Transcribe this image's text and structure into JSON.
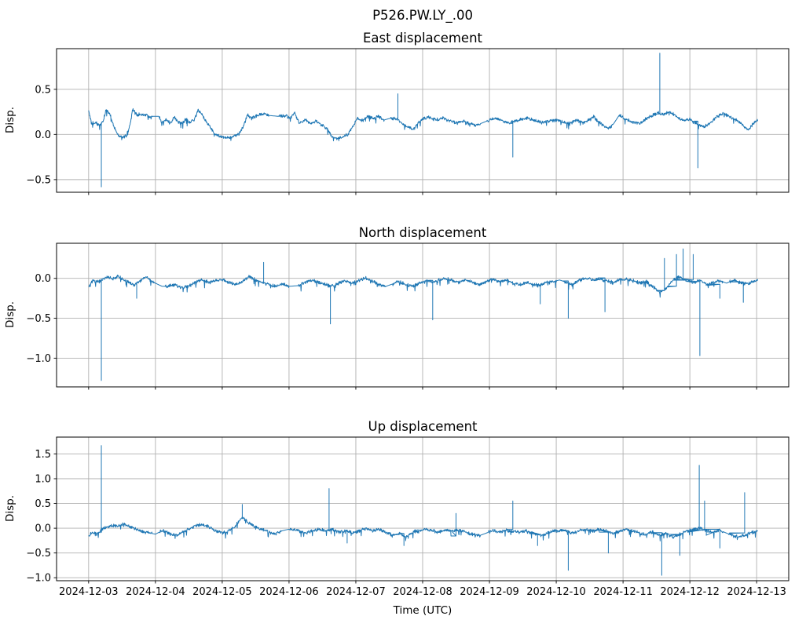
{
  "figure": {
    "suptitle": "P526.PW.LY_.00",
    "xlabel": "Time (UTC)",
    "ylabel": "Disp.",
    "line_color": "#1f77b4",
    "grid_color": "#b0b0b0",
    "spine_color": "#000000",
    "background": "#ffffff",
    "x_tick_days": [
      0,
      1,
      2,
      3,
      4,
      5,
      6,
      7,
      8,
      9,
      10
    ],
    "x_tick_labels": [
      "2024-12-03",
      "2024-12-04",
      "2024-12-05",
      "2024-12-06",
      "2024-12-07",
      "2024-12-08",
      "2024-12-09",
      "2024-12-10",
      "2024-12-11",
      "2024-12-12",
      "2024-12-13"
    ]
  },
  "chart_data": [
    {
      "type": "line",
      "title": "East displacement",
      "ylabel": "Disp.",
      "x_unit": "days since 2024-12-03 00:00 UTC",
      "xlim": [
        -0.48,
        10.48
      ],
      "ylim": [
        -0.64,
        0.95
      ],
      "yticks": [
        -0.5,
        0.0,
        0.5
      ],
      "noise_amp": 0.022,
      "x": [
        0.0,
        0.04,
        0.1,
        0.16,
        0.22,
        0.26,
        0.32,
        0.38,
        0.44,
        0.5,
        0.56,
        0.62,
        0.66,
        0.72,
        0.8,
        0.88,
        0.96,
        1.05,
        1.1,
        1.16,
        1.22,
        1.28,
        1.34,
        1.4,
        1.46,
        1.52,
        1.58,
        1.64,
        1.7,
        1.76,
        1.82,
        1.88,
        1.95,
        2.05,
        2.15,
        2.25,
        2.32,
        2.38,
        2.44,
        2.52,
        2.6,
        2.7,
        2.85,
        2.95,
        3.02,
        3.08,
        3.16,
        3.24,
        3.32,
        3.4,
        3.5,
        3.58,
        3.64,
        3.72,
        3.8,
        3.88,
        3.96,
        4.02,
        4.1,
        4.18,
        4.26,
        4.34,
        4.42,
        4.52,
        4.62,
        4.68,
        4.74,
        4.8,
        4.86,
        4.92,
        5.0,
        5.1,
        5.2,
        5.3,
        5.4,
        5.5,
        5.6,
        5.7,
        5.8,
        5.9,
        6.0,
        6.1,
        6.2,
        6.3,
        6.4,
        6.5,
        6.6,
        6.7,
        6.8,
        6.9,
        7.0,
        7.1,
        7.2,
        7.3,
        7.4,
        7.5,
        7.56,
        7.62,
        7.7,
        7.78,
        7.86,
        7.94,
        8.04,
        8.14,
        8.24,
        8.34,
        8.44,
        8.52,
        8.6,
        8.7,
        8.8,
        8.9,
        9.0,
        9.1,
        9.2,
        9.3,
        9.4,
        9.5,
        9.6,
        9.7,
        9.8,
        9.88,
        9.95,
        10.02
      ],
      "y": [
        0.27,
        0.12,
        0.13,
        0.1,
        0.15,
        0.28,
        0.22,
        0.08,
        -0.01,
        -0.03,
        -0.02,
        0.1,
        0.28,
        0.22,
        0.22,
        0.21,
        0.2,
        0.2,
        0.13,
        0.17,
        0.12,
        0.2,
        0.14,
        0.12,
        0.17,
        0.13,
        0.16,
        0.27,
        0.22,
        0.14,
        0.08,
        0.02,
        -0.02,
        -0.04,
        -0.03,
        0.0,
        0.1,
        0.22,
        0.18,
        0.21,
        0.23,
        0.21,
        0.2,
        0.21,
        0.18,
        0.24,
        0.12,
        0.16,
        0.12,
        0.15,
        0.1,
        0.05,
        -0.02,
        -0.05,
        -0.03,
        0.0,
        0.1,
        0.18,
        0.15,
        0.2,
        0.17,
        0.2,
        0.16,
        0.18,
        0.17,
        0.13,
        0.1,
        0.08,
        0.05,
        0.12,
        0.17,
        0.19,
        0.16,
        0.18,
        0.15,
        0.13,
        0.15,
        0.12,
        0.1,
        0.13,
        0.16,
        0.18,
        0.15,
        0.13,
        0.15,
        0.17,
        0.18,
        0.15,
        0.13,
        0.15,
        0.16,
        0.14,
        0.12,
        0.16,
        0.13,
        0.17,
        0.2,
        0.15,
        0.1,
        0.06,
        0.12,
        0.21,
        0.17,
        0.14,
        0.12,
        0.17,
        0.21,
        0.24,
        0.22,
        0.25,
        0.2,
        0.15,
        0.17,
        0.12,
        0.08,
        0.12,
        0.2,
        0.24,
        0.19,
        0.16,
        0.1,
        0.05,
        0.12,
        0.16
      ],
      "spikes": [
        [
          0.19,
          -0.58
        ],
        [
          4.63,
          0.45
        ],
        [
          6.35,
          -0.25
        ],
        [
          8.55,
          0.9
        ],
        [
          9.12,
          -0.37
        ]
      ],
      "gaps": [
        [
          0.96,
          1.05
        ],
        [
          2.7,
          2.84
        ],
        [
          4.42,
          4.52
        ],
        [
          5.86,
          5.96
        ],
        [
          7.84,
          7.94
        ]
      ]
    },
    {
      "type": "line",
      "title": "North displacement",
      "ylabel": "Disp.",
      "x_unit": "days since 2024-12-03 00:00 UTC",
      "xlim": [
        -0.48,
        10.48
      ],
      "ylim": [
        -1.36,
        0.44
      ],
      "yticks": [
        -1.0,
        -0.5,
        0.0
      ],
      "noise_amp": 0.025,
      "x": [
        0.0,
        0.06,
        0.12,
        0.2,
        0.28,
        0.36,
        0.44,
        0.52,
        0.6,
        0.68,
        0.76,
        0.84,
        0.92,
        1.0,
        1.1,
        1.2,
        1.3,
        1.4,
        1.5,
        1.6,
        1.7,
        1.8,
        1.9,
        2.0,
        2.1,
        2.2,
        2.3,
        2.4,
        2.5,
        2.6,
        2.7,
        2.8,
        2.9,
        3.0,
        3.15,
        3.25,
        3.35,
        3.45,
        3.55,
        3.65,
        3.75,
        3.85,
        3.95,
        4.05,
        4.15,
        4.25,
        4.35,
        4.45,
        4.55,
        4.65,
        4.75,
        4.85,
        4.95,
        5.05,
        5.15,
        5.25,
        5.35,
        5.45,
        5.55,
        5.65,
        5.75,
        5.85,
        5.95,
        6.05,
        6.15,
        6.25,
        6.35,
        6.45,
        6.55,
        6.65,
        6.75,
        6.85,
        6.95,
        7.05,
        7.15,
        7.25,
        7.35,
        7.45,
        7.55,
        7.65,
        7.75,
        7.85,
        7.95,
        8.05,
        8.15,
        8.25,
        8.35,
        8.45,
        8.55,
        8.65,
        8.75,
        8.85,
        8.95,
        9.05,
        9.15,
        9.25,
        9.35,
        9.45,
        9.55,
        9.65,
        9.75,
        9.85,
        9.95,
        10.02
      ],
      "y": [
        -0.1,
        -0.03,
        -0.05,
        -0.02,
        0.02,
        -0.01,
        0.03,
        -0.02,
        -0.05,
        -0.08,
        -0.04,
        0.02,
        -0.02,
        -0.06,
        -0.1,
        -0.1,
        -0.08,
        -0.12,
        -0.1,
        -0.05,
        -0.02,
        -0.05,
        -0.03,
        -0.02,
        -0.05,
        -0.08,
        -0.04,
        0.02,
        -0.02,
        -0.05,
        -0.08,
        -0.1,
        -0.07,
        -0.1,
        -0.09,
        -0.05,
        -0.02,
        -0.05,
        -0.08,
        -0.1,
        -0.06,
        -0.03,
        -0.06,
        -0.02,
        0.0,
        -0.04,
        -0.08,
        -0.1,
        -0.07,
        -0.04,
        -0.08,
        -0.1,
        -0.06,
        -0.03,
        -0.05,
        -0.02,
        0.0,
        -0.03,
        -0.05,
        -0.02,
        -0.05,
        -0.08,
        -0.04,
        -0.01,
        -0.04,
        -0.02,
        -0.06,
        -0.08,
        -0.05,
        -0.07,
        -0.09,
        -0.05,
        -0.04,
        -0.02,
        -0.05,
        -0.08,
        -0.02,
        0.0,
        -0.02,
        -0.01,
        -0.03,
        -0.05,
        -0.02,
        -0.01,
        -0.03,
        -0.06,
        -0.04,
        -0.1,
        -0.18,
        -0.12,
        -0.02,
        0.02,
        -0.03,
        -0.05,
        -0.02,
        -0.08,
        -0.05,
        -0.03,
        -0.06,
        -0.02,
        -0.05,
        -0.07,
        -0.04,
        -0.03
      ],
      "spikes": [
        [
          0.19,
          -1.28
        ],
        [
          0.72,
          -0.25
        ],
        [
          2.62,
          0.2
        ],
        [
          3.62,
          -0.57
        ],
        [
          5.15,
          -0.52
        ],
        [
          6.76,
          -0.32
        ],
        [
          7.18,
          -0.5
        ],
        [
          7.73,
          -0.42
        ],
        [
          8.62,
          0.25
        ],
        [
          8.8,
          0.3
        ],
        [
          8.9,
          0.37
        ],
        [
          9.05,
          0.3
        ],
        [
          9.15,
          -0.97
        ],
        [
          9.45,
          -0.25
        ],
        [
          9.8,
          -0.3
        ]
      ],
      "gaps": [
        [
          1.0,
          1.14
        ],
        [
          3.0,
          3.14
        ],
        [
          4.45,
          4.55
        ],
        [
          7.0,
          7.12
        ],
        [
          9.5,
          9.6
        ]
      ]
    },
    {
      "type": "line",
      "title": "Up displacement",
      "ylabel": "Disp.",
      "x_unit": "days since 2024-12-03 00:00 UTC",
      "xlim": [
        -0.48,
        10.48
      ],
      "ylim": [
        -1.06,
        1.84
      ],
      "yticks": [
        -1.0,
        -0.5,
        0.0,
        0.5,
        1.0,
        1.5
      ],
      "noise_amp": 0.04,
      "x": [
        0.0,
        0.06,
        0.12,
        0.2,
        0.28,
        0.36,
        0.44,
        0.52,
        0.6,
        0.68,
        0.76,
        0.84,
        0.92,
        1.0,
        1.1,
        1.2,
        1.3,
        1.4,
        1.5,
        1.6,
        1.7,
        1.8,
        1.9,
        2.0,
        2.1,
        2.2,
        2.3,
        2.4,
        2.5,
        2.6,
        2.7,
        2.8,
        2.9,
        3.0,
        3.15,
        3.25,
        3.35,
        3.45,
        3.55,
        3.65,
        3.75,
        3.85,
        3.95,
        4.05,
        4.15,
        4.25,
        4.35,
        4.45,
        4.55,
        4.65,
        4.75,
        4.85,
        4.95,
        5.05,
        5.15,
        5.25,
        5.35,
        5.45,
        5.55,
        5.65,
        5.75,
        5.85,
        5.95,
        6.05,
        6.15,
        6.25,
        6.35,
        6.45,
        6.55,
        6.65,
        6.75,
        6.85,
        6.95,
        7.05,
        7.15,
        7.25,
        7.35,
        7.45,
        7.55,
        7.65,
        7.75,
        7.85,
        7.95,
        8.05,
        8.15,
        8.25,
        8.35,
        8.45,
        8.55,
        8.65,
        8.75,
        8.85,
        8.95,
        9.05,
        9.15,
        9.25,
        9.35,
        9.45,
        9.55,
        9.65,
        9.75,
        9.85,
        9.95,
        10.02
      ],
      "y": [
        -0.15,
        -0.08,
        -0.12,
        -0.02,
        0.02,
        0.06,
        0.04,
        0.08,
        0.04,
        0.0,
        -0.05,
        -0.08,
        -0.1,
        -0.12,
        -0.05,
        -0.1,
        -0.15,
        -0.08,
        -0.02,
        0.05,
        0.08,
        0.02,
        -0.05,
        -0.1,
        -0.05,
        0.05,
        0.22,
        0.1,
        0.02,
        -0.02,
        -0.08,
        -0.12,
        -0.05,
        -0.02,
        -0.06,
        -0.1,
        -0.05,
        -0.02,
        -0.05,
        -0.03,
        -0.08,
        -0.05,
        -0.1,
        -0.05,
        0.0,
        -0.05,
        -0.02,
        -0.08,
        -0.15,
        -0.1,
        -0.18,
        -0.08,
        -0.05,
        -0.02,
        -0.05,
        -0.08,
        -0.04,
        -0.06,
        -0.03,
        -0.08,
        -0.12,
        -0.15,
        -0.1,
        -0.05,
        -0.08,
        -0.04,
        -0.06,
        -0.08,
        -0.05,
        -0.1,
        -0.15,
        -0.12,
        -0.05,
        -0.04,
        -0.06,
        -0.1,
        -0.05,
        -0.02,
        -0.05,
        -0.03,
        -0.06,
        -0.1,
        -0.05,
        -0.02,
        -0.05,
        -0.1,
        -0.12,
        -0.08,
        -0.15,
        -0.1,
        -0.18,
        -0.12,
        -0.05,
        -0.02,
        0.0,
        -0.05,
        -0.08,
        -0.04,
        -0.1,
        -0.15,
        -0.18,
        -0.12,
        -0.08,
        -0.05
      ],
      "spikes": [
        [
          0.19,
          1.67
        ],
        [
          2.3,
          0.48
        ],
        [
          3.6,
          0.8
        ],
        [
          3.87,
          -0.3
        ],
        [
          4.72,
          -0.35
        ],
        [
          5.5,
          0.3
        ],
        [
          6.35,
          0.55
        ],
        [
          6.72,
          -0.35
        ],
        [
          7.18,
          -0.85
        ],
        [
          7.78,
          -0.5
        ],
        [
          8.58,
          -0.95
        ],
        [
          8.85,
          -0.55
        ],
        [
          9.14,
          1.27
        ],
        [
          9.22,
          0.55
        ],
        [
          9.45,
          -0.4
        ],
        [
          9.82,
          0.72
        ]
      ],
      "gaps": [
        [
          0.96,
          1.06
        ],
        [
          2.88,
          3.0
        ],
        [
          5.86,
          5.98
        ],
        [
          9.5,
          9.58
        ]
      ]
    }
  ]
}
